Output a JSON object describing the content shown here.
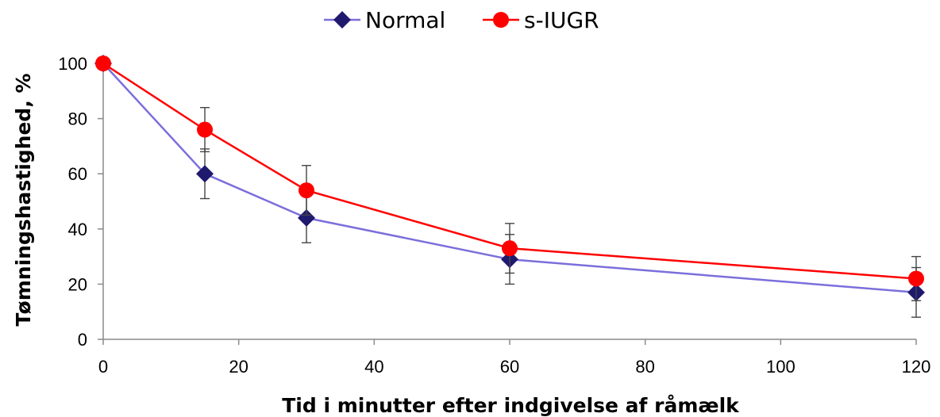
{
  "chart_data": {
    "type": "line",
    "xlabel": "Tid i minutter efter indgivelse af råmælk",
    "ylabel": "Tømningshastighed, %",
    "xlim": [
      0,
      120
    ],
    "ylim": [
      0,
      100
    ],
    "x_ticks": [
      "0",
      "20",
      "40",
      "60",
      "80",
      "100",
      "120"
    ],
    "y_ticks": [
      "0",
      "20",
      "40",
      "60",
      "80",
      "100"
    ],
    "grid": false,
    "legend_position": "top",
    "x": [
      0,
      15,
      30,
      60,
      120
    ],
    "series": [
      {
        "name": "Normal",
        "color": "#7b6fdb",
        "marker": "diamond",
        "marker_color": "#1f1a6e",
        "values": [
          100,
          60,
          44,
          29,
          17
        ],
        "error": [
          0,
          9,
          9,
          9,
          9
        ]
      },
      {
        "name": "s-IUGR",
        "color": "#ff0000",
        "marker": "circle",
        "marker_color": "#ff0000",
        "values": [
          100,
          76,
          54,
          33,
          22
        ],
        "error": [
          0,
          8,
          9,
          9,
          8
        ]
      }
    ]
  }
}
